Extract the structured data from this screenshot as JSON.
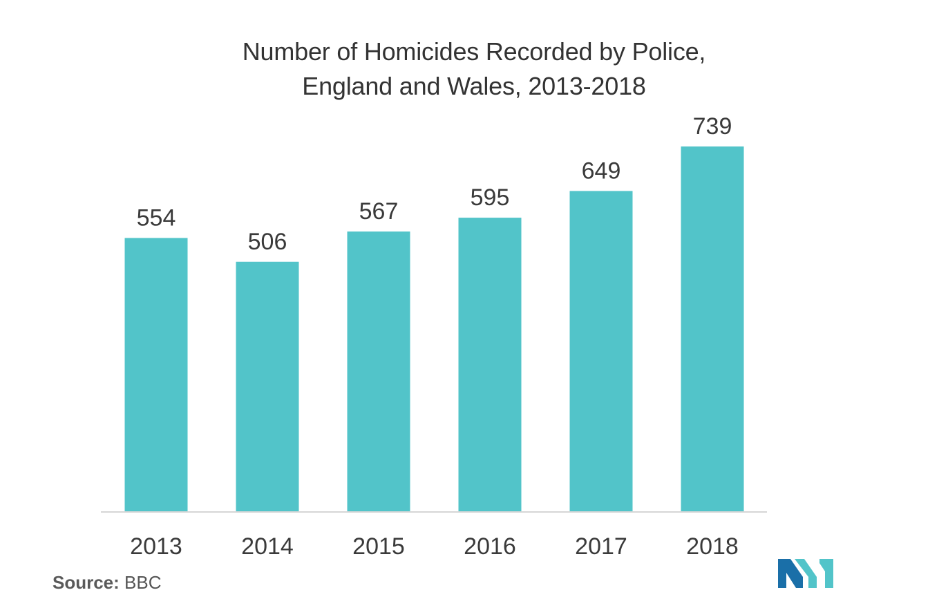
{
  "chart_data": {
    "type": "bar",
    "title_lines": [
      "Number of Homicides Recorded by Police,",
      "England and Wales, 2013-2018"
    ],
    "categories": [
      "2013",
      "2014",
      "2015",
      "2016",
      "2017",
      "2018"
    ],
    "values": [
      554,
      506,
      567,
      595,
      649,
      739
    ],
    "ylim": [
      0,
      739
    ],
    "data_labels": true,
    "grid": false,
    "bar_color": "#52c4c9",
    "axis_color": "#d6d6d6"
  },
  "source": {
    "label": "Source:",
    "value": "BBC"
  },
  "logo": {
    "icon": "mordor-intelligence-logo",
    "colors": [
      "#1a6fa8",
      "#52c4c9"
    ]
  }
}
